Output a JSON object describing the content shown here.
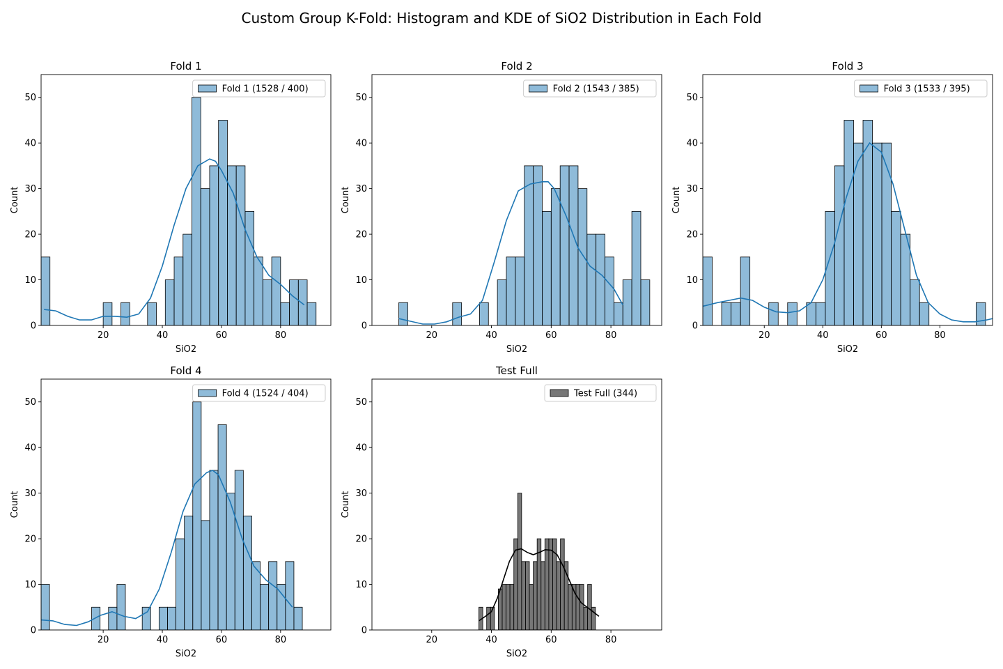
{
  "figure": {
    "title": "Custom Group K-Fold: Histogram and KDE of SiO2 Distribution in Each Fold"
  },
  "chart_data": [
    {
      "type": "histogram",
      "title": "Fold 1",
      "xlabel": "SiO2",
      "ylabel": "Count",
      "legend": "Fold 1 (1528 / 400)",
      "legend_position": "upper right",
      "color": "#1f77b4",
      "xlim": [
        -1,
        97
      ],
      "ylim": [
        0,
        55
      ],
      "xticks": [
        20,
        40,
        60,
        80
      ],
      "yticks": [
        0,
        10,
        20,
        30,
        40,
        50
      ],
      "bin_start": -1,
      "bin_width": 3,
      "counts": [
        15,
        0,
        0,
        0,
        0,
        0,
        0,
        5,
        0,
        5,
        0,
        0,
        5,
        0,
        10,
        15,
        20,
        50,
        30,
        35,
        45,
        35,
        35,
        25,
        15,
        10,
        15,
        5,
        10,
        10,
        5
      ],
      "kde_x": [
        0,
        4,
        8,
        12,
        16,
        20,
        24,
        28,
        32,
        36,
        40,
        44,
        48,
        52,
        56,
        58,
        60,
        64,
        68,
        72,
        76,
        80,
        84,
        88
      ],
      "kde_y": [
        3.5,
        3.2,
        2.0,
        1.2,
        1.2,
        2.0,
        2.0,
        1.8,
        2.5,
        6.0,
        13,
        22,
        30,
        35,
        36.5,
        36,
        34,
        29,
        21,
        15,
        11,
        9,
        6.5,
        4.5
      ]
    },
    {
      "type": "histogram",
      "title": "Fold 2",
      "xlabel": "SiO2",
      "ylabel": "Count",
      "legend": "Fold 2 (1543 / 385)",
      "legend_position": "upper right",
      "color": "#1f77b4",
      "xlim": [
        0,
        97
      ],
      "ylim": [
        0,
        55
      ],
      "xticks": [
        20,
        40,
        60,
        80
      ],
      "yticks": [
        0,
        10,
        20,
        30,
        40,
        50
      ],
      "bin_start": 9,
      "bin_width": 3,
      "counts": [
        5,
        0,
        0,
        0,
        0,
        0,
        5,
        0,
        0,
        5,
        0,
        10,
        15,
        15,
        35,
        35,
        25,
        30,
        35,
        35,
        30,
        20,
        20,
        15,
        5,
        10,
        25,
        10
      ],
      "kde_x": [
        9,
        13,
        17,
        21,
        25,
        29,
        33,
        37,
        41,
        45,
        49,
        53,
        57,
        59,
        61,
        65,
        69,
        73,
        77,
        81,
        84
      ],
      "kde_y": [
        1.5,
        0.9,
        0.3,
        0.3,
        0.8,
        1.8,
        2.5,
        5.5,
        14,
        23,
        29.5,
        31,
        31.5,
        31.5,
        30,
        24,
        17,
        13,
        11,
        8,
        4.5
      ]
    },
    {
      "type": "histogram",
      "title": "Fold 3",
      "xlabel": "SiO2",
      "ylabel": "Count",
      "legend": "Fold 3 (1533 / 395)",
      "legend_position": "upper right",
      "color": "#1f77b4",
      "xlim": [
        -1,
        98
      ],
      "ylim": [
        0,
        55
      ],
      "xticks": [
        20,
        40,
        60,
        80
      ],
      "yticks": [
        0,
        10,
        20,
        30,
        40,
        50
      ],
      "bin_start": -1,
      "bin_width": 3.22,
      "counts": [
        15,
        0,
        5,
        5,
        15,
        0,
        0,
        5,
        0,
        5,
        0,
        5,
        5,
        25,
        35,
        45,
        40,
        45,
        40,
        40,
        25,
        20,
        10,
        5,
        0,
        0,
        0,
        0,
        0,
        5
      ],
      "kde_x": [
        -1,
        4,
        8,
        12,
        16,
        20,
        24,
        28,
        32,
        36,
        40,
        44,
        48,
        52,
        56,
        60,
        64,
        68,
        72,
        76,
        80,
        84,
        88,
        92,
        96,
        98
      ],
      "kde_y": [
        4.2,
        5.0,
        5.5,
        6.0,
        5.5,
        4.0,
        3.0,
        2.8,
        3.2,
        5.0,
        10,
        18,
        28,
        36,
        40,
        38,
        31,
        21,
        11,
        5,
        2.5,
        1.2,
        0.8,
        0.8,
        1.2,
        1.5
      ]
    },
    {
      "type": "histogram",
      "title": "Fold 4",
      "xlabel": "SiO2",
      "ylabel": "Count",
      "legend": "Fold 4 (1524 / 404)",
      "legend_position": "upper right",
      "color": "#1f77b4",
      "xlim": [
        -1,
        97
      ],
      "ylim": [
        0,
        55
      ],
      "xticks": [
        20,
        40,
        60,
        80
      ],
      "yticks": [
        0,
        10,
        20,
        30,
        40,
        50
      ],
      "bin_start": -1,
      "bin_width": 2.85,
      "counts": [
        10,
        0,
        0,
        0,
        0,
        0,
        5,
        0,
        5,
        10,
        0,
        0,
        5,
        0,
        5,
        5,
        20,
        25,
        50,
        24,
        35,
        45,
        30,
        35,
        25,
        15,
        10,
        15,
        10,
        15,
        5
      ],
      "kde_x": [
        -1,
        3,
        7,
        11,
        15,
        19,
        23,
        27,
        31,
        35,
        39,
        43,
        47,
        51,
        55,
        57,
        59,
        63,
        67,
        71,
        75,
        79,
        84
      ],
      "kde_y": [
        2.2,
        2.0,
        1.2,
        1.0,
        1.8,
        3.2,
        4.0,
        3.0,
        2.5,
        4.0,
        9,
        17,
        26,
        32,
        34.5,
        35,
        34,
        28,
        20,
        14,
        11,
        9,
        5
      ]
    },
    {
      "type": "histogram",
      "title": "Test Full",
      "xlabel": "SiO2",
      "ylabel": "Count",
      "legend": "Test Full (344)",
      "legend_position": "upper right",
      "color": "#555555",
      "xlim": [
        0,
        97
      ],
      "ylim": [
        0,
        55
      ],
      "xticks": [
        20,
        40,
        60,
        80
      ],
      "yticks": [
        0,
        10,
        20,
        30,
        40,
        50
      ],
      "bin_start": 35.8,
      "bin_width": 1.3,
      "counts": [
        5,
        0,
        5,
        5,
        0,
        9,
        10,
        10,
        10,
        20,
        30,
        15,
        15,
        10,
        15,
        20,
        15,
        20,
        20,
        20,
        15,
        20,
        15,
        10,
        10,
        10,
        10,
        5,
        10,
        5
      ],
      "kde_x": [
        35.8,
        38,
        40,
        42,
        44,
        46,
        48,
        50,
        52,
        54,
        56,
        58,
        60,
        62,
        64,
        66,
        68,
        70,
        72,
        74,
        76
      ],
      "kde_y": [
        2,
        3,
        4,
        7,
        11,
        15,
        17.5,
        17.8,
        17,
        16.5,
        17,
        17.6,
        17.5,
        16.5,
        14,
        11,
        8,
        6,
        5,
        4,
        3
      ]
    }
  ]
}
